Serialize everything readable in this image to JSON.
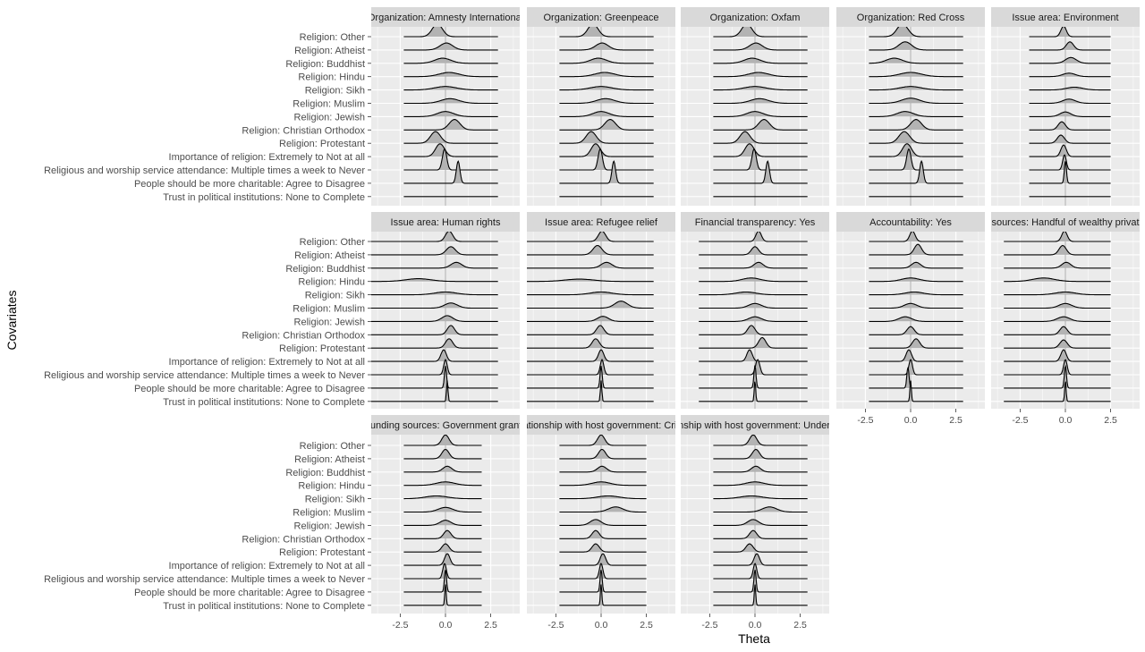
{
  "chart_data": {
    "type": "ridgeline",
    "xlabel": "Theta",
    "ylabel": "Covariates",
    "xlim": [
      -4.1,
      4.1
    ],
    "x_ticks": [
      -2.5,
      0,
      2.5
    ],
    "x_tick_labels": [
      "-2.5",
      "0.0",
      "2.5"
    ],
    "reference_line": 0,
    "grid": true,
    "covariates": [
      "Religion: Other",
      "Religion: Atheist",
      "Religion: Buddhist",
      "Religion: Hindu",
      "Religion: Sikh",
      "Religion: Muslim",
      "Religion: Jewish",
      "Religion: Christian Orthodox",
      "Religion: Protestant",
      "Importance of religion: Extremely to Not at all",
      "Religious and worship service attendance: Multiple times a week to Never",
      "People should be more charitable: Agree to Disagree",
      "Trust in political institutions: None to Complete"
    ],
    "panels": [
      {
        "title": "Organization: Amnesty International",
        "range": [
          -2.3,
          2.9
        ],
        "ridges": [
          [
            -0.45,
            0.28,
            0.55
          ],
          [
            0.05,
            0.35,
            0.3
          ],
          [
            -0.15,
            0.45,
            0.22
          ],
          [
            0.2,
            0.55,
            0.18
          ],
          [
            0.0,
            0.6,
            0.15
          ],
          [
            0.25,
            0.5,
            0.2
          ],
          [
            0.0,
            0.45,
            0.22
          ],
          [
            0.5,
            0.3,
            0.45
          ],
          [
            -0.55,
            0.28,
            0.5
          ],
          [
            -0.3,
            0.25,
            0.55
          ],
          [
            -0.05,
            0.12,
            0.9
          ],
          [
            0.7,
            0.1,
            0.95
          ],
          [
            0.0,
            0.05,
            0.0
          ]
        ]
      },
      {
        "title": "Organization: Greenpeace",
        "range": [
          -2.3,
          2.9
        ],
        "ridges": [
          [
            -0.45,
            0.28,
            0.55
          ],
          [
            0.05,
            0.35,
            0.3
          ],
          [
            -0.15,
            0.45,
            0.22
          ],
          [
            0.2,
            0.55,
            0.18
          ],
          [
            0.0,
            0.6,
            0.15
          ],
          [
            0.25,
            0.5,
            0.2
          ],
          [
            0.0,
            0.45,
            0.22
          ],
          [
            0.5,
            0.3,
            0.45
          ],
          [
            -0.55,
            0.28,
            0.5
          ],
          [
            -0.3,
            0.25,
            0.55
          ],
          [
            -0.05,
            0.12,
            0.9
          ],
          [
            0.7,
            0.1,
            0.95
          ],
          [
            0.0,
            0.05,
            0.0
          ]
        ]
      },
      {
        "title": "Organization: Oxfam",
        "range": [
          -2.3,
          2.9
        ],
        "ridges": [
          [
            -0.45,
            0.28,
            0.55
          ],
          [
            0.05,
            0.35,
            0.3
          ],
          [
            -0.15,
            0.45,
            0.22
          ],
          [
            0.2,
            0.55,
            0.18
          ],
          [
            0.0,
            0.6,
            0.15
          ],
          [
            0.25,
            0.5,
            0.2
          ],
          [
            0.0,
            0.45,
            0.22
          ],
          [
            0.5,
            0.3,
            0.45
          ],
          [
            -0.55,
            0.28,
            0.5
          ],
          [
            -0.3,
            0.25,
            0.55
          ],
          [
            -0.05,
            0.12,
            0.9
          ],
          [
            0.7,
            0.1,
            0.95
          ],
          [
            0.0,
            0.05,
            0.0
          ]
        ]
      },
      {
        "title": "Organization: Red Cross",
        "range": [
          -2.3,
          2.9
        ],
        "ridges": [
          [
            -0.45,
            0.3,
            0.55
          ],
          [
            -0.3,
            0.35,
            0.35
          ],
          [
            -0.9,
            0.45,
            0.22
          ],
          [
            0.0,
            0.6,
            0.18
          ],
          [
            0.0,
            0.6,
            0.15
          ],
          [
            0.0,
            0.5,
            0.22
          ],
          [
            -0.3,
            0.45,
            0.22
          ],
          [
            0.3,
            0.3,
            0.45
          ],
          [
            -0.35,
            0.3,
            0.5
          ],
          [
            -0.2,
            0.25,
            0.55
          ],
          [
            -0.1,
            0.12,
            0.9
          ],
          [
            0.6,
            0.1,
            0.95
          ],
          [
            0.0,
            0.05,
            0.0
          ]
        ]
      },
      {
        "title": "Issue area: Environment",
        "range": [
          -2.0,
          2.5
        ],
        "ridges": [
          [
            -0.1,
            0.15,
            0.45
          ],
          [
            0.25,
            0.2,
            0.35
          ],
          [
            0.3,
            0.3,
            0.25
          ],
          [
            0.2,
            0.35,
            0.15
          ],
          [
            0.5,
            0.45,
            0.12
          ],
          [
            0.2,
            0.35,
            0.18
          ],
          [
            0.0,
            0.3,
            0.2
          ],
          [
            -0.2,
            0.2,
            0.35
          ],
          [
            -0.25,
            0.2,
            0.35
          ],
          [
            -0.1,
            0.15,
            0.5
          ],
          [
            -0.05,
            0.1,
            0.65
          ],
          [
            0.0,
            0.06,
            0.95
          ],
          [
            0.0,
            0.05,
            0.0
          ]
        ]
      },
      {
        "title": "Issue area: Human rights",
        "range": [
          -4.1,
          2.9
        ],
        "ridges": [
          [
            0.2,
            0.2,
            0.45
          ],
          [
            0.3,
            0.25,
            0.35
          ],
          [
            0.6,
            0.3,
            0.25
          ],
          [
            -1.5,
            0.7,
            0.12
          ],
          [
            0.0,
            0.6,
            0.12
          ],
          [
            0.3,
            0.35,
            0.22
          ],
          [
            0.1,
            0.3,
            0.25
          ],
          [
            0.3,
            0.2,
            0.4
          ],
          [
            0.2,
            0.2,
            0.4
          ],
          [
            -0.1,
            0.15,
            0.5
          ],
          [
            0.0,
            0.1,
            0.65
          ],
          [
            0.0,
            0.06,
            0.95
          ],
          [
            0.1,
            0.04,
            0.9
          ]
        ]
      },
      {
        "title": "Issue area: Refugee relief",
        "range": [
          -4.1,
          2.9
        ],
        "ridges": [
          [
            0.05,
            0.2,
            0.45
          ],
          [
            -0.2,
            0.25,
            0.4
          ],
          [
            0.3,
            0.3,
            0.25
          ],
          [
            -1.2,
            0.8,
            0.1
          ],
          [
            0.0,
            0.6,
            0.12
          ],
          [
            1.1,
            0.35,
            0.3
          ],
          [
            0.1,
            0.3,
            0.22
          ],
          [
            -0.05,
            0.2,
            0.4
          ],
          [
            -0.3,
            0.2,
            0.4
          ],
          [
            0.0,
            0.15,
            0.5
          ],
          [
            0.05,
            0.1,
            0.65
          ],
          [
            0.0,
            0.06,
            0.95
          ],
          [
            0.0,
            0.04,
            0.9
          ]
        ]
      },
      {
        "title": "Financial transparency: Yes",
        "range": [
          -3.1,
          2.9
        ],
        "ridges": [
          [
            0.2,
            0.15,
            0.45
          ],
          [
            0.0,
            0.2,
            0.35
          ],
          [
            0.2,
            0.25,
            0.25
          ],
          [
            -0.2,
            0.5,
            0.15
          ],
          [
            -0.5,
            0.55,
            0.12
          ],
          [
            0.0,
            0.35,
            0.2
          ],
          [
            0.0,
            0.35,
            0.2
          ],
          [
            -0.2,
            0.2,
            0.4
          ],
          [
            0.4,
            0.2,
            0.45
          ],
          [
            -0.3,
            0.15,
            0.5
          ],
          [
            0.15,
            0.12,
            0.65
          ],
          [
            0.0,
            0.06,
            0.95
          ],
          [
            0.0,
            0.04,
            0.9
          ]
        ]
      },
      {
        "title": "Accountability: Yes",
        "range": [
          -2.3,
          2.9
        ],
        "ridges": [
          [
            0.1,
            0.15,
            0.45
          ],
          [
            0.4,
            0.2,
            0.45
          ],
          [
            0.3,
            0.25,
            0.25
          ],
          [
            0.0,
            0.5,
            0.15
          ],
          [
            0.2,
            0.5,
            0.12
          ],
          [
            0.0,
            0.35,
            0.2
          ],
          [
            -0.3,
            0.35,
            0.2
          ],
          [
            0.0,
            0.2,
            0.35
          ],
          [
            0.3,
            0.2,
            0.4
          ],
          [
            -0.1,
            0.15,
            0.5
          ],
          [
            0.0,
            0.1,
            0.65
          ],
          [
            -0.15,
            0.06,
            0.9
          ],
          [
            0.0,
            0.04,
            0.9
          ]
        ]
      },
      {
        "title": "Funding sources: Handful of wealthy private donors",
        "range": [
          -3.4,
          2.5
        ],
        "ridges": [
          [
            -0.05,
            0.15,
            0.45
          ],
          [
            -0.15,
            0.2,
            0.4
          ],
          [
            0.05,
            0.25,
            0.25
          ],
          [
            -1.2,
            0.6,
            0.15
          ],
          [
            0.0,
            0.55,
            0.12
          ],
          [
            0.0,
            0.35,
            0.2
          ],
          [
            -0.1,
            0.35,
            0.2
          ],
          [
            -0.1,
            0.2,
            0.35
          ],
          [
            -0.1,
            0.2,
            0.35
          ],
          [
            -0.1,
            0.15,
            0.5
          ],
          [
            0.0,
            0.1,
            0.65
          ],
          [
            0.0,
            0.06,
            0.95
          ],
          [
            0.0,
            0.04,
            0.9
          ]
        ]
      },
      {
        "title": "Funding sources: Government grants",
        "range": [
          -2.3,
          2.0
        ],
        "ridges": [
          [
            0.0,
            0.2,
            0.45
          ],
          [
            0.0,
            0.2,
            0.4
          ],
          [
            0.1,
            0.25,
            0.25
          ],
          [
            0.0,
            0.5,
            0.15
          ],
          [
            -0.5,
            0.6,
            0.12
          ],
          [
            0.0,
            0.4,
            0.2
          ],
          [
            0.0,
            0.3,
            0.22
          ],
          [
            0.1,
            0.2,
            0.35
          ],
          [
            0.0,
            0.2,
            0.35
          ],
          [
            0.1,
            0.15,
            0.5
          ],
          [
            -0.05,
            0.1,
            0.65
          ],
          [
            0.0,
            0.06,
            0.95
          ],
          [
            0.0,
            0.04,
            0.9
          ]
        ]
      },
      {
        "title": "Relationship with host government: Critical",
        "range": [
          -2.3,
          2.5
        ],
        "ridges": [
          [
            0.0,
            0.2,
            0.45
          ],
          [
            0.05,
            0.2,
            0.4
          ],
          [
            0.05,
            0.25,
            0.25
          ],
          [
            0.0,
            0.5,
            0.15
          ],
          [
            0.4,
            0.6,
            0.12
          ],
          [
            0.8,
            0.4,
            0.22
          ],
          [
            -0.3,
            0.3,
            0.25
          ],
          [
            -0.3,
            0.2,
            0.35
          ],
          [
            -0.3,
            0.2,
            0.35
          ],
          [
            0.1,
            0.15,
            0.5
          ],
          [
            0.0,
            0.1,
            0.65
          ],
          [
            0.0,
            0.06,
            0.95
          ],
          [
            0.0,
            0.04,
            0.9
          ]
        ]
      },
      {
        "title": "Relationship with host government: Under control",
        "range": [
          -2.3,
          2.9
        ],
        "ridges": [
          [
            -0.1,
            0.2,
            0.45
          ],
          [
            0.05,
            0.2,
            0.4
          ],
          [
            0.05,
            0.25,
            0.25
          ],
          [
            0.0,
            0.5,
            0.15
          ],
          [
            -0.2,
            0.6,
            0.12
          ],
          [
            0.8,
            0.4,
            0.22
          ],
          [
            -0.1,
            0.3,
            0.25
          ],
          [
            -0.1,
            0.2,
            0.35
          ],
          [
            -0.3,
            0.2,
            0.35
          ],
          [
            0.1,
            0.15,
            0.5
          ],
          [
            0.0,
            0.1,
            0.65
          ],
          [
            0.0,
            0.06,
            0.95
          ],
          [
            0.0,
            0.04,
            0.9
          ]
        ]
      }
    ],
    "colors": {
      "panel_bg": "#ebebeb",
      "grid": "#ffffff",
      "strip_bg": "#d9d9d9",
      "ridge_fill": "#b3b3b3",
      "ridge_line": "#000000",
      "zero_line": "#bdbdbd"
    }
  }
}
